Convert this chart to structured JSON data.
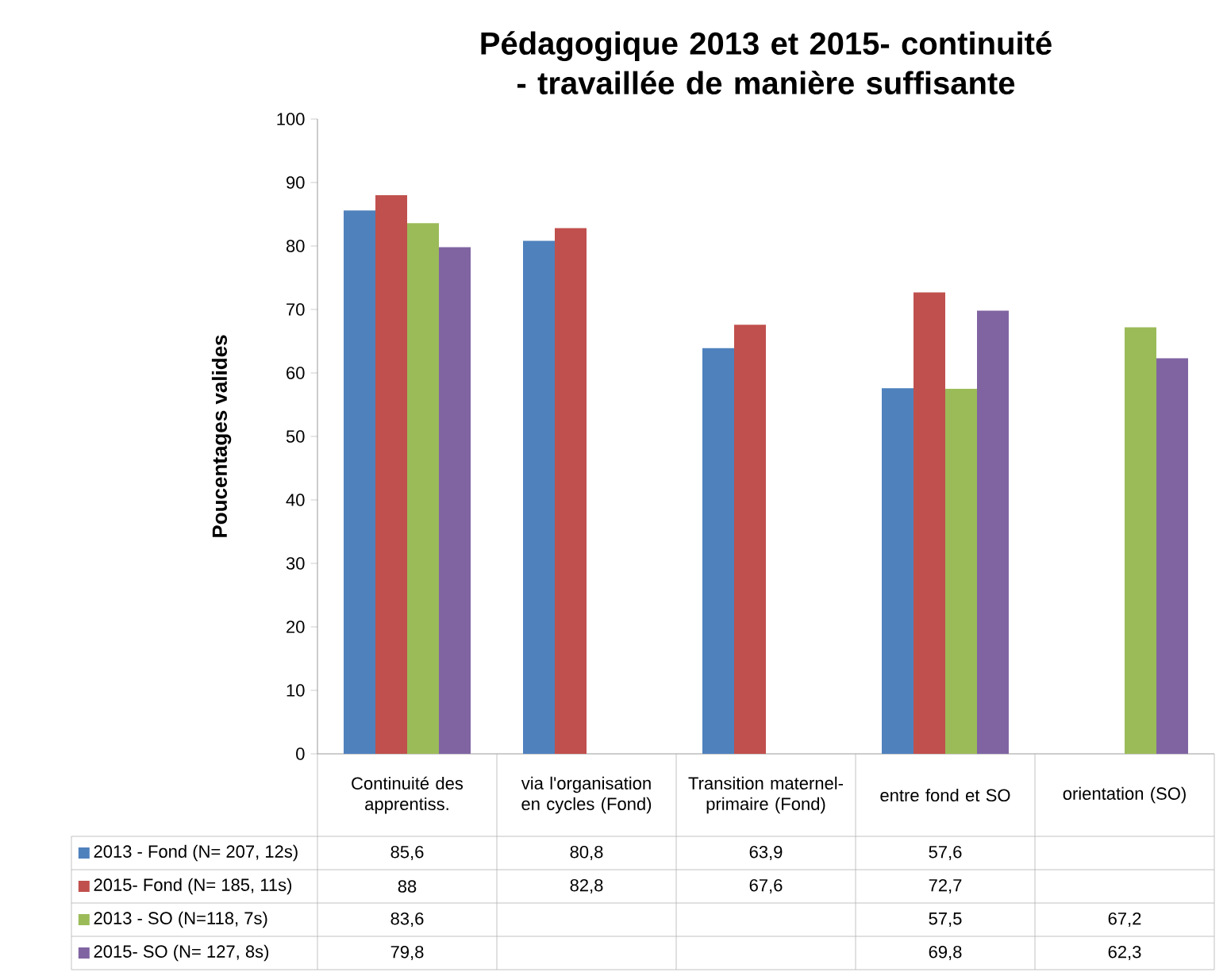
{
  "chart_data": {
    "type": "bar",
    "title": "Pédagogique 2013 et 2015- continuité - travaillée de manière suffisante",
    "ylabel": "Poucentages valides",
    "categories": [
      "Continuité des apprentiss.",
      "via l'organisation en cycles (Fond)",
      "Transition maternel-primaire (Fond)",
      "entre fond et  SO",
      "orientation (SO)"
    ],
    "series": [
      {
        "name": "2013 - Fond (N= 207, 12s)",
        "color": "#4f81bd",
        "values": [
          85.6,
          80.8,
          63.9,
          57.6,
          null
        ],
        "value_labels": [
          "85,6",
          "80,8",
          "63,9",
          "57,6",
          null
        ]
      },
      {
        "name": "2015- Fond (N= 185, 11s)",
        "color": "#c0504d",
        "values": [
          88,
          82.8,
          67.6,
          72.7,
          null
        ],
        "value_labels": [
          "88",
          "82,8",
          "67,6",
          "72,7",
          null
        ]
      },
      {
        "name": "2013 - SO (N=118, 7s)",
        "color": "#9bbb59",
        "values": [
          83.6,
          null,
          null,
          57.5,
          67.2
        ],
        "value_labels": [
          "83,6",
          null,
          null,
          "57,5",
          "67,2"
        ]
      },
      {
        "name": "2015- SO (N= 127, 8s)",
        "color": "#8064a2",
        "values": [
          79.8,
          null,
          null,
          69.8,
          62.3
        ],
        "value_labels": [
          "79,8",
          null,
          null,
          "69,8",
          "62,3"
        ]
      }
    ],
    "ylim": [
      0,
      100
    ],
    "yticks": [
      0,
      10,
      20,
      30,
      40,
      50,
      60,
      70,
      80,
      90,
      100
    ],
    "legend": "bottom"
  }
}
